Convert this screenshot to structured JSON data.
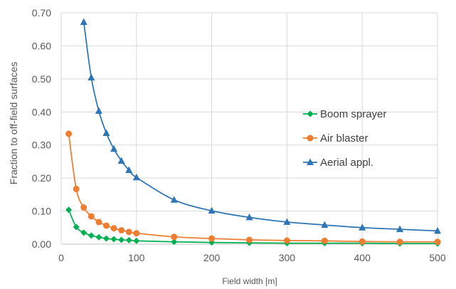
{
  "chart_data": {
    "type": "line",
    "title": "",
    "xlabel": "Field width [m]",
    "ylabel": "Fraction to off-field surfaces",
    "xlim": [
      0,
      500
    ],
    "ylim": [
      0,
      0.7
    ],
    "x_ticks": [
      "0",
      "100",
      "200",
      "300",
      "400",
      "500"
    ],
    "y_ticks": [
      "0.00",
      "0.10",
      "0.20",
      "0.30",
      "0.40",
      "0.50",
      "0.60",
      "0.70"
    ],
    "grid": "vertical and horizontal",
    "legend_position": "right",
    "series": [
      {
        "name": "Boom sprayer",
        "color": "#00B050",
        "marker": "diamond",
        "x": [
          10,
          20,
          30,
          40,
          50,
          60,
          70,
          80,
          90,
          100,
          150,
          200,
          250,
          300,
          350,
          400,
          450,
          500
        ],
        "y": [
          0.104,
          0.052,
          0.035,
          0.026,
          0.021,
          0.017,
          0.015,
          0.013,
          0.012,
          0.01,
          0.007,
          0.005,
          0.004,
          0.003,
          0.003,
          0.003,
          0.002,
          0.002
        ]
      },
      {
        "name": "Air blaster",
        "color": "#ED7D31",
        "marker": "circle",
        "x": [
          10,
          20,
          30,
          40,
          50,
          60,
          70,
          80,
          90,
          100,
          150,
          200,
          250,
          300,
          350,
          400,
          450,
          500
        ],
        "y": [
          0.334,
          0.167,
          0.111,
          0.084,
          0.067,
          0.056,
          0.048,
          0.042,
          0.037,
          0.033,
          0.022,
          0.017,
          0.013,
          0.011,
          0.01,
          0.008,
          0.007,
          0.007
        ]
      },
      {
        "name": "Aerial appl.",
        "color": "#2E75B6",
        "marker": "triangle",
        "x": [
          30,
          40,
          50,
          60,
          70,
          80,
          90,
          100,
          150,
          200,
          250,
          300,
          350,
          400,
          450,
          500
        ],
        "y": [
          0.672,
          0.504,
          0.403,
          0.336,
          0.288,
          0.252,
          0.224,
          0.202,
          0.134,
          0.101,
          0.081,
          0.067,
          0.058,
          0.05,
          0.045,
          0.04
        ]
      }
    ]
  }
}
